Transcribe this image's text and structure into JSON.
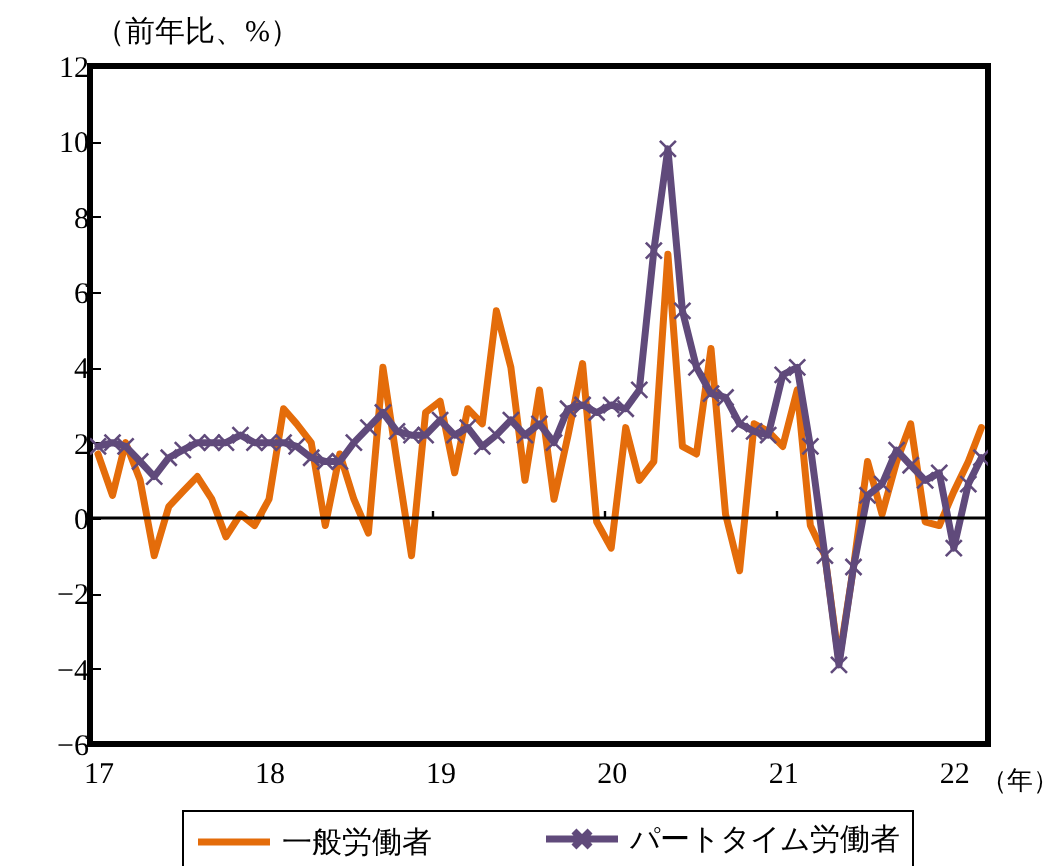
{
  "chart_data": {
    "type": "line",
    "ylabel": "（前年比、%）",
    "xlabel": "（年）",
    "x": [
      "2017-01",
      "2017-02",
      "2017-03",
      "2017-04",
      "2017-05",
      "2017-06",
      "2017-07",
      "2017-08",
      "2017-09",
      "2017-10",
      "2017-11",
      "2017-12",
      "2018-01",
      "2018-02",
      "2018-03",
      "2018-04",
      "2018-05",
      "2018-06",
      "2018-07",
      "2018-08",
      "2018-09",
      "2018-10",
      "2018-11",
      "2018-12",
      "2019-01",
      "2019-02",
      "2019-03",
      "2019-04",
      "2019-05",
      "2019-06",
      "2019-07",
      "2019-08",
      "2019-09",
      "2019-10",
      "2019-11",
      "2019-12",
      "2020-01",
      "2020-02",
      "2020-03",
      "2020-04",
      "2020-05",
      "2020-06",
      "2020-07",
      "2020-08",
      "2020-09",
      "2020-10",
      "2020-11",
      "2020-12",
      "2021-01",
      "2021-02",
      "2021-03",
      "2021-04",
      "2021-05",
      "2021-06",
      "2021-07",
      "2021-08",
      "2021-09",
      "2021-10",
      "2021-11",
      "2021-12",
      "2022-01",
      "2022-02",
      "2022-03"
    ],
    "xlim": [
      "2016-12-15",
      "2022-03-15"
    ],
    "xticks": [
      {
        "value": "2017-01",
        "label": "17"
      },
      {
        "value": "2018-01",
        "label": "18"
      },
      {
        "value": "2019-01",
        "label": "19"
      },
      {
        "value": "2020-01",
        "label": "20"
      },
      {
        "value": "2021-01",
        "label": "21"
      },
      {
        "value": "2022-01",
        "label": "22"
      }
    ],
    "ylim": [
      -6,
      12
    ],
    "yticks": [
      -6,
      -4,
      -2,
      0,
      2,
      4,
      6,
      8,
      10,
      12
    ],
    "series": [
      {
        "name": "一般労働者",
        "color": "#e46c0a",
        "marker": "none",
        "values": [
          1.7,
          0.6,
          2.0,
          1.0,
          -1.0,
          0.3,
          0.7,
          1.1,
          0.5,
          -0.5,
          0.1,
          -0.2,
          0.5,
          2.9,
          2.5,
          2.0,
          -0.2,
          1.7,
          0.5,
          -0.4,
          4.0,
          1.5,
          -1.0,
          2.8,
          3.1,
          1.2,
          2.9,
          2.5,
          5.5,
          4.0,
          1.0,
          3.4,
          0.5,
          2.2,
          4.1,
          -0.1,
          -0.8,
          2.4,
          1.0,
          1.5,
          7.0,
          1.9,
          1.7,
          4.5,
          0.1,
          -1.4,
          2.5,
          2.3,
          1.9,
          3.4,
          -0.2,
          -1.0,
          -3.8,
          -1.3,
          1.5,
          0.1,
          1.5,
          2.5,
          -0.1,
          -0.2,
          0.7,
          1.5,
          2.4
        ]
      },
      {
        "name": "パートタイム労働者",
        "color": "#604a7b",
        "marker": "cross",
        "values": [
          1.9,
          2.0,
          1.9,
          1.5,
          1.1,
          1.6,
          1.8,
          2.0,
          2.0,
          2.0,
          2.2,
          2.0,
          2.0,
          2.0,
          1.9,
          1.6,
          1.5,
          1.5,
          2.0,
          2.4,
          2.8,
          2.3,
          2.2,
          2.2,
          2.6,
          2.2,
          2.4,
          1.9,
          2.2,
          2.6,
          2.2,
          2.5,
          2.0,
          2.9,
          3.0,
          2.8,
          3.0,
          2.9,
          3.4,
          7.1,
          9.8,
          5.5,
          4.0,
          3.3,
          3.2,
          2.5,
          2.3,
          2.2,
          3.8,
          4.0,
          1.9,
          -1.0,
          -3.9,
          -1.3,
          0.6,
          0.9,
          1.8,
          1.4,
          1.0,
          1.2,
          -0.8,
          0.9,
          1.6
        ]
      }
    ],
    "ref_lines": [
      {
        "axis": "y",
        "value": 0,
        "color": "#000000"
      }
    ],
    "legend": "bottom",
    "line_style": "solid"
  }
}
